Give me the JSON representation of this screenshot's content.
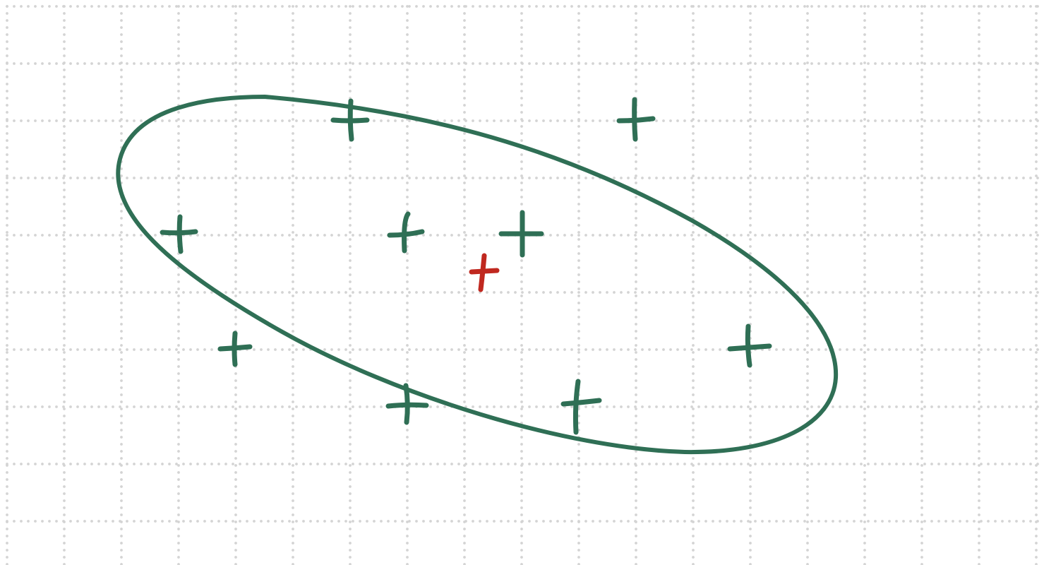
{
  "diagram": {
    "type": "hand-drawn sketch on dotted grid paper",
    "background_color": "#ffffff",
    "grid_dot_color": "#d4d4d4",
    "ink_color": "#2f6f55",
    "highlight_color": "#c0281f",
    "cross_count_inside_ellipse": 6,
    "cross_count_outside_ellipse": 3,
    "red_cross_count": 1
  }
}
